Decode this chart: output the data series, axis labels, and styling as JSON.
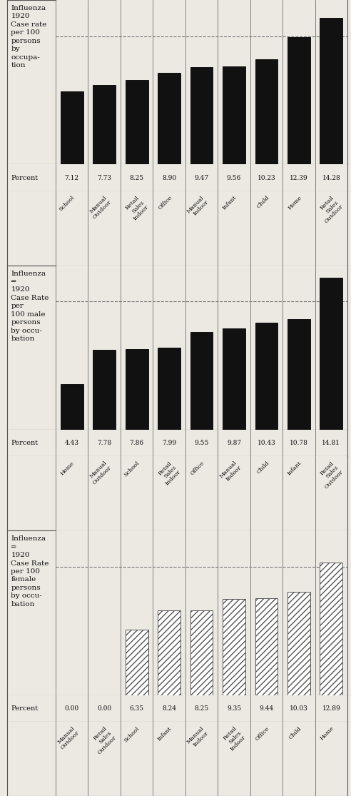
{
  "charts": [
    {
      "title": "Influenza\n1920\nCase rate\nper 100\npersons\nby\noccupa-\ntion",
      "categories": [
        "School",
        "Manual\nOutdoor",
        "Retail\nSales\nIndoor",
        "Office",
        "Manual\nIndoor",
        "Infant",
        "Child",
        "Home",
        "Retail\nSales\nOutdoor"
      ],
      "values": [
        7.12,
        7.73,
        8.25,
        8.9,
        9.47,
        9.56,
        10.23,
        12.39,
        14.28
      ],
      "hatch": false,
      "dashed_line_y": 0.78,
      "ylim": [
        0,
        16
      ]
    },
    {
      "title": "Influenza\n═\n1920\nCase Rate\nper\n100 male\npersons\nby occu-\nbation",
      "categories": [
        "Home",
        "Manual\nOutdoor",
        "School",
        "Retail\nSales\nIndoor",
        "Office",
        "Manual\nIndoor",
        "Child",
        "Infant",
        "Retail\nSales\nOutdoor"
      ],
      "values": [
        4.43,
        7.78,
        7.86,
        7.99,
        9.55,
        9.87,
        10.43,
        10.78,
        14.81
      ],
      "hatch": false,
      "dashed_line_y": 0.78,
      "ylim": [
        0,
        16
      ]
    },
    {
      "title": "Influenza\n═\n1920\nCase Rate\nper 100\nfemale\npersons\nby occu-\nbation",
      "categories": [
        "Manual\nOutdoor",
        "Retail\nSales\nOutdoor",
        "School",
        "Infant",
        "Manual\nIndoor",
        "Retail\nSales\nIndoor",
        "Office",
        "Child",
        "Home"
      ],
      "values": [
        0.0,
        0.0,
        6.35,
        8.24,
        8.25,
        9.35,
        9.44,
        10.03,
        12.89
      ],
      "hatch": true,
      "dashed_line_y": 0.78,
      "ylim": [
        0,
        16
      ]
    }
  ],
  "bar_color": "#111111",
  "background_color": "#ece9e3",
  "text_color": "#111111",
  "border_color": "#555555",
  "percent_labels": [
    [
      "7.12",
      "7.73",
      "8.25",
      "8.90",
      "9.47",
      "9.56",
      "10.23",
      "12.39",
      "14.28"
    ],
    [
      "4.43",
      "7.78",
      "7.86",
      "7.99",
      "9.55",
      "9.87",
      "10.43",
      "10.78",
      "14.81"
    ],
    [
      "0.00",
      "0.00",
      "6.35",
      "8.24",
      "8.25",
      "9.35",
      "9.44",
      "10.03",
      "12.89"
    ]
  ],
  "figsize": [
    4.92,
    11.15
  ],
  "dpi": 100
}
